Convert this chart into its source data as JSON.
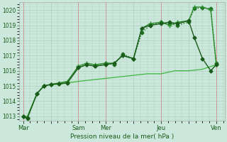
{
  "title": "Pression niveau de la mer( hPa )",
  "ylabel_min": 1013,
  "ylabel_max": 1020,
  "yticks": [
    1013,
    1014,
    1015,
    1016,
    1017,
    1018,
    1019,
    1020
  ],
  "xtick_labels": [
    "Mar",
    "",
    "Sam",
    "Mer",
    "",
    "Jeu",
    "",
    "Ven"
  ],
  "xtick_positions": [
    0,
    1,
    2,
    3,
    4,
    5,
    6,
    7
  ],
  "background_color": "#cce8dc",
  "grid_color": "#aacfbe",
  "text_color": "#1a5c1a",
  "series": [
    {
      "name": "line1_dotted_start",
      "x": [
        0,
        0.15,
        0.5,
        0.75,
        1.0,
        1.3,
        1.6,
        2.0,
        2.3,
        2.6,
        3.0,
        3.3,
        3.6,
        4.0,
        4.3,
        4.6,
        5.0,
        5.3,
        5.6,
        6.0,
        6.2,
        6.5,
        6.8,
        7.0
      ],
      "y": [
        1013.0,
        1012.85,
        1014.5,
        1015.0,
        1015.1,
        1015.15,
        1015.2,
        1016.2,
        1016.4,
        1016.3,
        1016.5,
        1016.4,
        1017.1,
        1016.8,
        1018.5,
        1019.0,
        1019.2,
        1019.1,
        1019.0,
        1019.2,
        1020.1,
        1020.15,
        1020.1,
        1016.5
      ],
      "color": "#1e6e1e",
      "lw": 1.0,
      "marker": "D",
      "ms": 2.5,
      "linestyle": ":"
    },
    {
      "name": "line2_solid_markers",
      "x": [
        0,
        0.15,
        0.5,
        0.75,
        1.0,
        1.3,
        1.6,
        2.0,
        2.3,
        2.6,
        3.0,
        3.3,
        3.6,
        4.0,
        4.3,
        4.6,
        5.0,
        5.3,
        5.6,
        6.0,
        6.2,
        6.5,
        6.8,
        7.0
      ],
      "y": [
        1013.0,
        1012.9,
        1014.5,
        1015.0,
        1015.1,
        1015.2,
        1015.3,
        1016.3,
        1016.5,
        1016.4,
        1016.5,
        1016.5,
        1017.0,
        1016.8,
        1018.8,
        1019.1,
        1019.2,
        1019.0,
        1019.2,
        1019.3,
        1020.2,
        1020.2,
        1020.0,
        1016.4
      ],
      "color": "#2a8c2a",
      "lw": 1.0,
      "marker": "+",
      "ms": 4,
      "mew": 1.0,
      "linestyle": "-"
    },
    {
      "name": "line3_flat",
      "x": [
        0,
        0.15,
        0.5,
        0.75,
        1.0,
        1.3,
        1.6,
        2.0,
        2.5,
        3.0,
        3.5,
        4.0,
        4.5,
        5.0,
        5.5,
        6.0,
        6.5,
        7.0
      ],
      "y": [
        1013.0,
        1013.0,
        1014.5,
        1015.0,
        1015.1,
        1015.1,
        1015.2,
        1015.3,
        1015.4,
        1015.5,
        1015.6,
        1015.7,
        1015.8,
        1015.8,
        1016.0,
        1016.0,
        1016.1,
        1016.4
      ],
      "color": "#3cb83c",
      "lw": 0.9,
      "marker": null,
      "ms": 0,
      "linestyle": "-"
    },
    {
      "name": "line4_dark",
      "x": [
        0,
        0.15,
        0.5,
        0.75,
        1.0,
        1.3,
        1.6,
        2.0,
        2.3,
        2.6,
        3.0,
        3.3,
        3.6,
        4.0,
        4.3,
        4.6,
        5.0,
        5.3,
        5.6,
        6.0,
        6.2,
        6.5,
        6.8,
        7.0
      ],
      "y": [
        1013.0,
        1012.9,
        1014.5,
        1015.0,
        1015.1,
        1015.15,
        1015.2,
        1016.2,
        1016.4,
        1016.3,
        1016.4,
        1016.5,
        1017.0,
        1016.8,
        1018.8,
        1019.0,
        1019.1,
        1019.2,
        1019.1,
        1019.3,
        1018.2,
        1016.8,
        1016.0,
        1016.4
      ],
      "color": "#1a5a1a",
      "lw": 1.0,
      "marker": "D",
      "ms": 2.5,
      "linestyle": "-"
    }
  ]
}
